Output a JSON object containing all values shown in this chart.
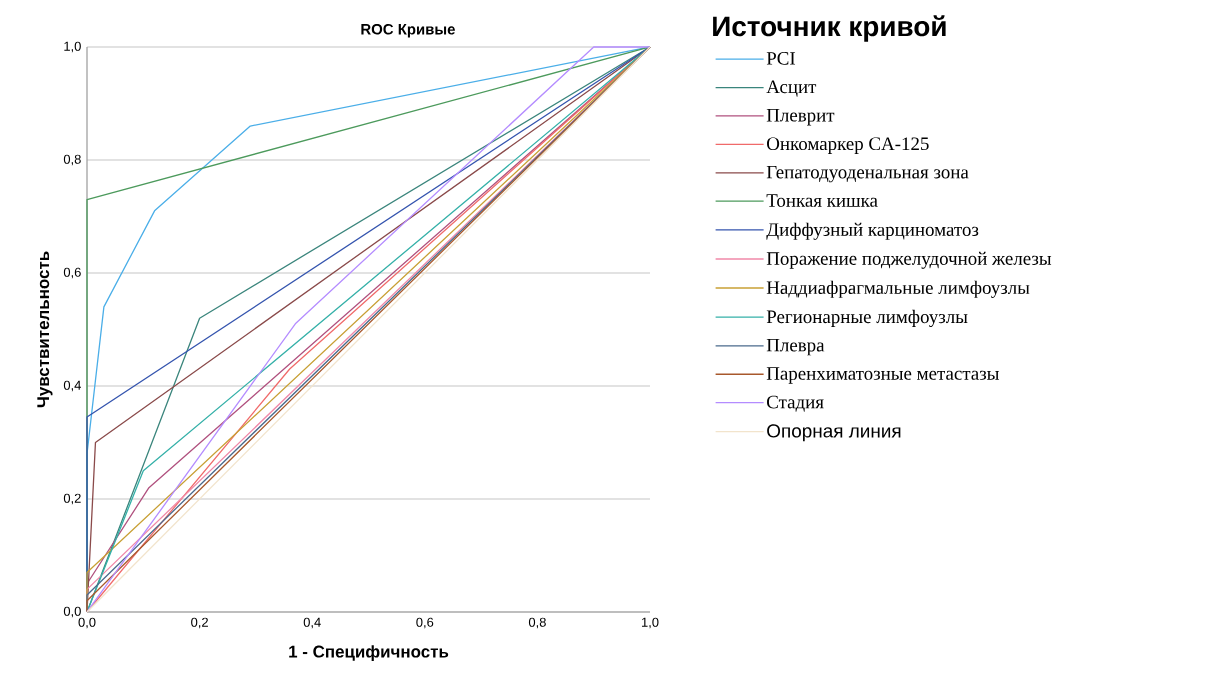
{
  "chart_data": {
    "type": "line",
    "title": "ROC Кривые",
    "xlabel": "1 - Специфичность",
    "ylabel": "Чувствительность",
    "legend_title": "Источник кривой",
    "xlim": [
      0,
      1
    ],
    "ylim": [
      0,
      1
    ],
    "xticks": [
      {
        "value": 0,
        "label": "0,0"
      },
      {
        "value": 0.2,
        "label": "0,2"
      },
      {
        "value": 0.4,
        "label": "0,4"
      },
      {
        "value": 0.6,
        "label": "0,6"
      },
      {
        "value": 0.8,
        "label": "0,8"
      },
      {
        "value": 1,
        "label": "1,0"
      }
    ],
    "yticks": [
      {
        "value": 0,
        "label": "0,0"
      },
      {
        "value": 0.2,
        "label": "0,2"
      },
      {
        "value": 0.4,
        "label": "0,4"
      },
      {
        "value": 0.6,
        "label": "0,6"
      },
      {
        "value": 0.8,
        "label": "0,8"
      },
      {
        "value": 1,
        "label": "1,0"
      }
    ],
    "grid": "y",
    "legend": "right",
    "marker": "none",
    "line_style": "solid",
    "series": [
      {
        "name": "PCI",
        "color": "#4aaee8",
        "x": [
          0,
          0,
          0.03,
          0.12,
          0.29,
          1
        ],
        "values": [
          0,
          0.28,
          0.54,
          0.71,
          0.86,
          1
        ]
      },
      {
        "name": "Асцит",
        "color": "#3a857c",
        "x": [
          0,
          0.2,
          1
        ],
        "values": [
          0,
          0.52,
          1
        ]
      },
      {
        "name": "Плеврит",
        "color": "#b0507e",
        "x": [
          0,
          0,
          0.11,
          1
        ],
        "values": [
          0,
          0.05,
          0.22,
          1
        ]
      },
      {
        "name": "Онкомаркер CA-125",
        "color": "#f06a6a",
        "x": [
          0,
          0.36,
          1
        ],
        "values": [
          0,
          0.43,
          1
        ]
      },
      {
        "name": "Гепатодуоденальная зона",
        "color": "#8a4a4a",
        "x": [
          0,
          0.015,
          1
        ],
        "values": [
          0,
          0.3,
          1
        ]
      },
      {
        "name": "Тонкая кишка",
        "color": "#4c9a5c",
        "x": [
          0,
          0,
          1
        ],
        "values": [
          0,
          0.73,
          1
        ]
      },
      {
        "name": "Диффузный карциноматоз",
        "color": "#3454ae",
        "x": [
          0,
          0,
          1
        ],
        "values": [
          0,
          0.345,
          1
        ]
      },
      {
        "name": "Поражение поджелудочной железы",
        "color": "#f088a8",
        "x": [
          0,
          0,
          1
        ],
        "values": [
          0,
          0.04,
          1
        ]
      },
      {
        "name": "Наддиафрагмальные лимфоузлы",
        "color": "#c8a034",
        "x": [
          0,
          0,
          1
        ],
        "values": [
          0,
          0.07,
          1
        ]
      },
      {
        "name": "Регионарные лимфоузлы",
        "color": "#34b0a8",
        "x": [
          0,
          0.1,
          1
        ],
        "values": [
          0,
          0.25,
          1
        ]
      },
      {
        "name": "Плевра",
        "color": "#4a6a8c",
        "x": [
          0,
          0,
          1
        ],
        "values": [
          0,
          0.03,
          1
        ]
      },
      {
        "name": "Паренхиматозные метастазы",
        "color": "#a8582c",
        "x": [
          0,
          0,
          1
        ],
        "values": [
          0,
          0.02,
          1
        ]
      },
      {
        "name": "Стадия",
        "color": "#b48cff",
        "x": [
          0,
          0.37,
          0.9,
          1
        ],
        "values": [
          0,
          0.51,
          1,
          1
        ]
      },
      {
        "name": "Опорная линия",
        "color": "#f2e4cc",
        "x": [
          0,
          1
        ],
        "values": [
          0,
          1
        ]
      }
    ]
  }
}
